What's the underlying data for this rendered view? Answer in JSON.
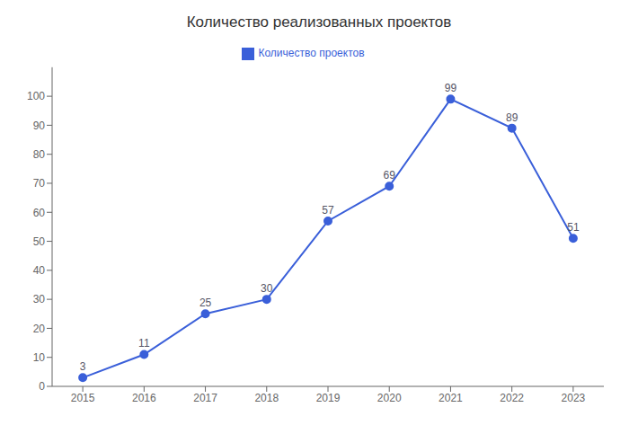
{
  "chart_data": {
    "type": "line",
    "title": "Количество реализованных проектов",
    "x": [
      2015,
      2016,
      2017,
      2018,
      2019,
      2020,
      2021,
      2022,
      2023
    ],
    "series": [
      {
        "name": "Количество проектов",
        "color": "#3a5fd9",
        "values": [
          3,
          11,
          25,
          30,
          57,
          69,
          99,
          89,
          51
        ]
      }
    ],
    "xlim": [
      2014.5,
      2023.5
    ],
    "xticks": [
      2015,
      2016,
      2017,
      2018,
      2019,
      2020,
      2021,
      2022,
      2023
    ],
    "ylim": [
      0,
      110
    ],
    "yticks": [
      0,
      10,
      20,
      30,
      40,
      50,
      60,
      70,
      80,
      90,
      100
    ],
    "grid": false,
    "legend": "top",
    "data_labels": true,
    "marker": "circle"
  }
}
